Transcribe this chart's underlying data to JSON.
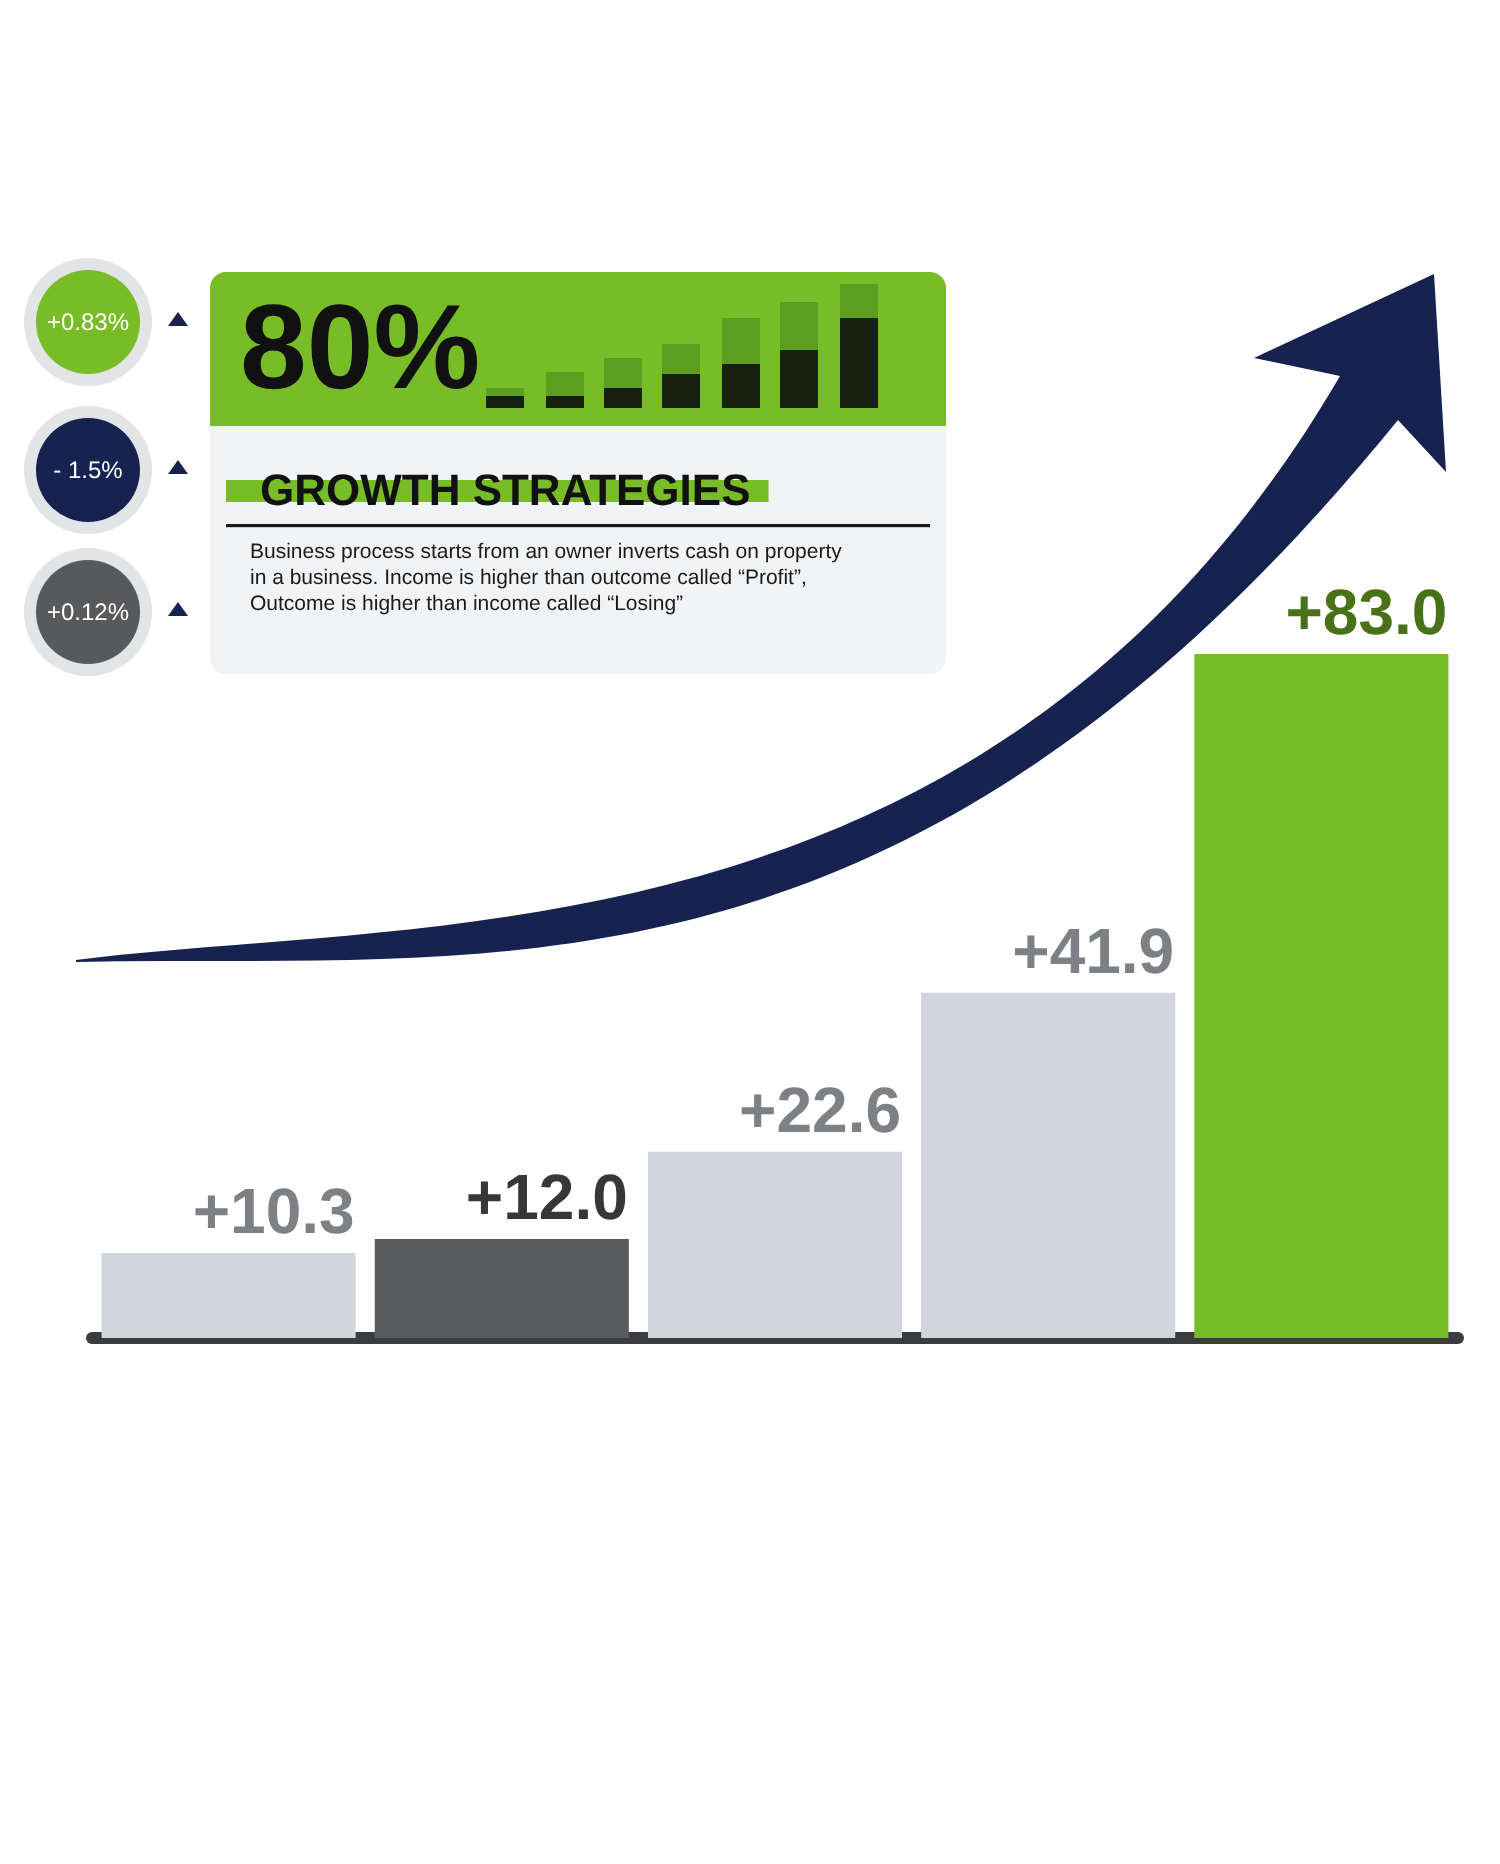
{
  "chart_data": {
    "type": "bar",
    "title": "GROWTH STRATEGIES",
    "categories": [
      null,
      null,
      null,
      null,
      null
    ],
    "values": [
      10.3,
      12.0,
      22.6,
      41.9,
      83.0
    ],
    "colors": [
      "#d1d5dc",
      "#5a5b5d",
      "#d1d5dc",
      "#d1d5dc",
      "#78bc28"
    ],
    "value_labels": [
      "+10.3",
      "+12.0",
      "+22.6",
      "+41.9",
      "+83.0"
    ],
    "tick_labels": false,
    "annotations": [
      "80%",
      "Business process starts from an owner inverts cash on property in a business. Income is higher than outcome called “Profit”, Outcome is higher than income called “Losing”",
      "+0.83%",
      "- 1.5%",
      "+0.12%"
    ]
  }
}
